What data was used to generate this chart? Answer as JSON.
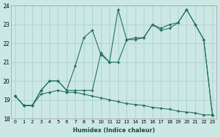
{
  "xlabel": "Humidex (Indice chaleur)",
  "bg_color": "#cce8e4",
  "grid_color": "#aacfca",
  "line_color": "#1a6b5a",
  "xlim": [
    -0.5,
    23.5
  ],
  "ylim": [
    18,
    24
  ],
  "yticks": [
    18,
    19,
    20,
    21,
    22,
    23,
    24
  ],
  "xticks": [
    0,
    1,
    2,
    3,
    4,
    5,
    6,
    7,
    8,
    9,
    10,
    11,
    12,
    13,
    14,
    15,
    16,
    17,
    18,
    19,
    20,
    21,
    22,
    23
  ],
  "line1_x": [
    0,
    1,
    2,
    3,
    4,
    5,
    6,
    7,
    8,
    9,
    10,
    11,
    12,
    13,
    14,
    15,
    16,
    17,
    18,
    19,
    20,
    21,
    22,
    23
  ],
  "line1_y": [
    19.2,
    18.7,
    18.7,
    19.5,
    20.0,
    20.0,
    19.5,
    20.8,
    22.3,
    22.7,
    21.4,
    21.0,
    23.8,
    22.2,
    22.2,
    22.3,
    23.0,
    22.7,
    22.8,
    23.1,
    23.8,
    23.0,
    22.2,
    18.2
  ],
  "line2_x": [
    0,
    1,
    2,
    3,
    4,
    5,
    6,
    7,
    8,
    9,
    10,
    11,
    12,
    13,
    14,
    15,
    16,
    17,
    18,
    19,
    20,
    21,
    22,
    23
  ],
  "line2_y": [
    19.2,
    18.7,
    18.7,
    19.5,
    20.0,
    20.0,
    19.5,
    19.5,
    19.5,
    19.5,
    21.5,
    21.0,
    21.0,
    22.2,
    22.3,
    22.3,
    23.0,
    22.8,
    23.0,
    23.1,
    23.8,
    23.0,
    22.2,
    18.2
  ],
  "line3_x": [
    0,
    1,
    2,
    3,
    4,
    5,
    6,
    7,
    8,
    9,
    10,
    11,
    12,
    13,
    14,
    15,
    16,
    17,
    18,
    19,
    20,
    21,
    22,
    23
  ],
  "line3_y": [
    19.2,
    18.7,
    18.7,
    19.3,
    19.4,
    19.5,
    19.4,
    19.4,
    19.3,
    19.2,
    19.1,
    19.0,
    18.9,
    18.8,
    18.75,
    18.7,
    18.6,
    18.55,
    18.5,
    18.4,
    18.35,
    18.3,
    18.2,
    18.2
  ]
}
